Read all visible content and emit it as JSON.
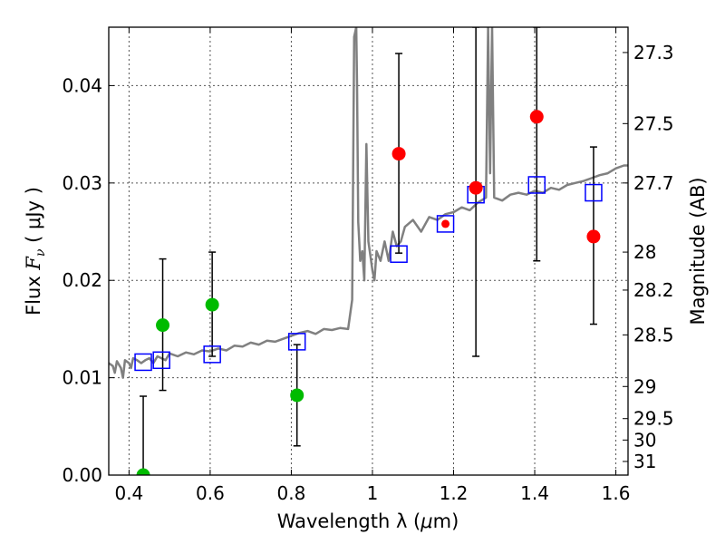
{
  "chart_data": {
    "type": "scatter",
    "xlabel_text": "Wavelength  λ (",
    "xlabel_mu": "μ",
    "xlabel_unit": "m)",
    "ylabel_text": "Flux  ",
    "ylabel_F": "F",
    "ylabel_nu": "ν",
    "ylabel_unit": "  ( μJy )",
    "y2label": "Magnitude (AB)",
    "xlim": [
      0.35,
      1.63
    ],
    "ylim": [
      0.0,
      0.046
    ],
    "grid": true,
    "x_ticks": [
      {
        "value": 0.4,
        "label": "0.4"
      },
      {
        "value": 0.6,
        "label": "0.6"
      },
      {
        "value": 0.8,
        "label": "0.8"
      },
      {
        "value": 1.0,
        "label": "1"
      },
      {
        "value": 1.2,
        "label": "1.2"
      },
      {
        "value": 1.4,
        "label": "1.4"
      },
      {
        "value": 1.6,
        "label": "1.6"
      }
    ],
    "y_ticks": [
      {
        "value": 0.0,
        "label": "0.00"
      },
      {
        "value": 0.01,
        "label": "0.01"
      },
      {
        "value": 0.02,
        "label": "0.02"
      },
      {
        "value": 0.03,
        "label": "0.03"
      },
      {
        "value": 0.04,
        "label": "0.04"
      }
    ],
    "y2_ticks": [
      {
        "flux": 0.0434,
        "label": "27.3"
      },
      {
        "flux": 0.0361,
        "label": "27.5"
      },
      {
        "flux": 0.03,
        "label": "27.7"
      },
      {
        "flux": 0.0229,
        "label": "28"
      },
      {
        "flux": 0.019,
        "label": "28.2"
      },
      {
        "flux": 0.0144,
        "label": "28.5"
      },
      {
        "flux": 0.0091,
        "label": "29"
      },
      {
        "flux": 0.0058,
        "label": "29.5"
      },
      {
        "flux": 0.0036,
        "label": "30"
      },
      {
        "flux": 0.0014,
        "label": "31"
      }
    ],
    "series": [
      {
        "name": "template_spectrum",
        "kind": "line",
        "color": "#808080",
        "x": [
          0.35,
          0.36,
          0.365,
          0.37,
          0.38,
          0.385,
          0.39,
          0.4,
          0.405,
          0.41,
          0.42,
          0.43,
          0.44,
          0.45,
          0.46,
          0.47,
          0.48,
          0.49,
          0.5,
          0.52,
          0.54,
          0.56,
          0.58,
          0.6,
          0.62,
          0.64,
          0.66,
          0.68,
          0.7,
          0.72,
          0.74,
          0.76,
          0.78,
          0.8,
          0.82,
          0.84,
          0.86,
          0.88,
          0.9,
          0.92,
          0.94,
          0.95,
          0.955,
          0.96,
          0.962,
          0.965,
          0.97,
          0.975,
          0.98,
          0.985,
          0.99,
          1.0,
          1.005,
          1.01,
          1.02,
          1.03,
          1.04,
          1.05,
          1.06,
          1.07,
          1.08,
          1.1,
          1.12,
          1.14,
          1.16,
          1.18,
          1.2,
          1.22,
          1.24,
          1.26,
          1.28,
          1.285,
          1.29,
          1.295,
          1.3,
          1.32,
          1.34,
          1.36,
          1.38,
          1.4,
          1.42,
          1.44,
          1.46,
          1.48,
          1.5,
          1.52,
          1.54,
          1.56,
          1.58,
          1.6,
          1.62,
          1.63
        ],
        "y": [
          0.0115,
          0.0112,
          0.0105,
          0.0117,
          0.011,
          0.01,
          0.0118,
          0.0115,
          0.011,
          0.012,
          0.0118,
          0.0115,
          0.0118,
          0.012,
          0.0115,
          0.0122,
          0.012,
          0.0118,
          0.0125,
          0.0122,
          0.0126,
          0.0124,
          0.0128,
          0.0127,
          0.013,
          0.0128,
          0.0133,
          0.0132,
          0.0136,
          0.0134,
          0.0138,
          0.0137,
          0.014,
          0.0143,
          0.0146,
          0.0148,
          0.0145,
          0.015,
          0.0149,
          0.0151,
          0.015,
          0.018,
          0.045,
          0.046,
          0.04,
          0.026,
          0.022,
          0.023,
          0.02,
          0.034,
          0.024,
          0.021,
          0.02,
          0.023,
          0.022,
          0.024,
          0.022,
          0.025,
          0.0235,
          0.024,
          0.0255,
          0.0262,
          0.025,
          0.0265,
          0.0262,
          0.0268,
          0.027,
          0.0275,
          0.0272,
          0.028,
          0.0285,
          0.046,
          0.031,
          0.046,
          0.0285,
          0.0282,
          0.0288,
          0.029,
          0.0288,
          0.0292,
          0.029,
          0.0295,
          0.0293,
          0.0298,
          0.03,
          0.0302,
          0.0305,
          0.0308,
          0.031,
          0.0315,
          0.0318,
          0.0318
        ]
      },
      {
        "name": "model_photometry",
        "kind": "open-square",
        "color": "#0000ff",
        "x": [
          0.435,
          0.48,
          0.605,
          0.814,
          1.065,
          1.18,
          1.255,
          1.405,
          1.545
        ],
        "y": [
          0.0116,
          0.0118,
          0.0124,
          0.0137,
          0.0227,
          0.0258,
          0.0288,
          0.0298,
          0.029
        ]
      },
      {
        "name": "observed_optical",
        "kind": "filled-circle",
        "color": "#00bb00",
        "x": [
          0.435,
          0.483,
          0.605,
          0.814
        ],
        "y": [
          0.0,
          0.0154,
          0.0175,
          0.0082
        ],
        "err_low": [
          0.0,
          0.0087,
          0.0122,
          0.003
        ],
        "err_high": [
          0.0081,
          0.0222,
          0.0229,
          0.0134
        ]
      },
      {
        "name": "observed_nir",
        "kind": "filled-circle",
        "color": "#ff0000",
        "x": [
          1.065,
          1.18,
          1.255,
          1.405,
          1.545
        ],
        "y": [
          0.033,
          0.0258,
          0.0295,
          0.0368,
          0.0245
        ],
        "err_low": [
          0.0228,
          null,
          0.0122,
          0.022,
          0.0155
        ],
        "err_high": [
          0.0433,
          null,
          0.046,
          0.046,
          0.0337
        ],
        "marker_size": [
          1,
          0.6,
          1,
          1,
          1
        ]
      }
    ]
  }
}
